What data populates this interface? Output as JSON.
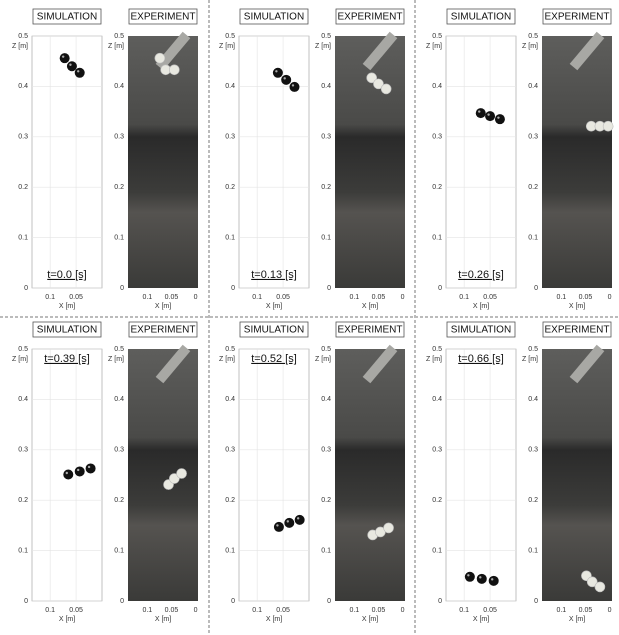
{
  "chart_data": [
    {
      "type": "scatter",
      "title": "SIMULATION",
      "annotation": "t=0.0 [s]",
      "xlabel": "X [m]",
      "ylabel": "Z [m]",
      "x": [
        0.072,
        0.058,
        0.043
      ],
      "values": [
        0.456,
        0.44,
        0.427
      ],
      "color": "#111111",
      "xlim": [
        0.135,
        0
      ],
      "ylim": [
        0,
        0.5
      ],
      "xticks": [
        0.1,
        0.05
      ],
      "yticks": [
        0,
        0.1,
        0.2,
        0.3,
        0.4,
        0.5
      ],
      "grid": true
    },
    {
      "type": "image",
      "title": "EXPERIMENT",
      "xlabel": "X [m]",
      "ylabel": "Z [m]",
      "x": [
        0.074,
        0.062,
        0.044
      ],
      "values": [
        0.456,
        0.433,
        0.433
      ],
      "color": "#e8e8e0",
      "xlim": [
        0.14,
        -0.005
      ],
      "ylim": [
        0,
        0.5
      ],
      "xticks": [
        0.1,
        0.05,
        0
      ],
      "yticks": [
        0,
        0.1,
        0.2,
        0.3,
        0.4,
        0.5
      ]
    },
    {
      "type": "scatter",
      "title": "SIMULATION",
      "annotation": "t=0.13 [s]",
      "xlabel": "X [m]",
      "ylabel": "Z [m]",
      "x": [
        0.06,
        0.044,
        0.028
      ],
      "values": [
        0.427,
        0.413,
        0.399
      ],
      "color": "#111111",
      "xlim": [
        0.135,
        0
      ],
      "ylim": [
        0,
        0.5
      ],
      "xticks": [
        0.1,
        0.05
      ],
      "yticks": [
        0,
        0.1,
        0.2,
        0.3,
        0.4,
        0.5
      ],
      "grid": true
    },
    {
      "type": "image",
      "title": "EXPERIMENT",
      "xlabel": "X [m]",
      "ylabel": "Z [m]",
      "x": [
        0.064,
        0.05,
        0.034
      ],
      "values": [
        0.417,
        0.405,
        0.395
      ],
      "color": "#e8e8e0",
      "xlim": [
        0.14,
        -0.005
      ],
      "ylim": [
        0,
        0.5
      ],
      "xticks": [
        0.1,
        0.05,
        0
      ],
      "yticks": [
        0,
        0.1,
        0.2,
        0.3,
        0.4,
        0.5
      ]
    },
    {
      "type": "scatter",
      "title": "SIMULATION",
      "annotation": "t=0.26 [s]",
      "xlabel": "X [m]",
      "ylabel": "Z [m]",
      "x": [
        0.068,
        0.05,
        0.031
      ],
      "values": [
        0.347,
        0.341,
        0.335
      ],
      "color": "#111111",
      "xlim": [
        0.135,
        0
      ],
      "ylim": [
        0,
        0.5
      ],
      "xticks": [
        0.1,
        0.05
      ],
      "yticks": [
        0,
        0.1,
        0.2,
        0.3,
        0.4,
        0.5
      ],
      "grid": true
    },
    {
      "type": "image",
      "title": "EXPERIMENT",
      "xlabel": "X [m]",
      "ylabel": "Z [m]",
      "x": [
        0.038,
        0.02,
        0.003
      ],
      "values": [
        0.321,
        0.321,
        0.321
      ],
      "color": "#e8e8e0",
      "xlim": [
        0.14,
        -0.005
      ],
      "ylim": [
        0,
        0.5
      ],
      "xticks": [
        0.1,
        0.05,
        0
      ],
      "yticks": [
        0,
        0.1,
        0.2,
        0.3,
        0.4,
        0.5
      ]
    },
    {
      "type": "scatter",
      "title": "SIMULATION",
      "annotation": "t=0.39 [s]",
      "xlabel": "X [m]",
      "ylabel": "Z [m]",
      "x": [
        0.065,
        0.043,
        0.022
      ],
      "values": [
        0.251,
        0.257,
        0.263
      ],
      "color": "#111111",
      "xlim": [
        0.135,
        0
      ],
      "ylim": [
        0,
        0.5
      ],
      "xticks": [
        0.1,
        0.05
      ],
      "yticks": [
        0,
        0.1,
        0.2,
        0.3,
        0.4,
        0.5
      ],
      "grid": true
    },
    {
      "type": "image",
      "title": "EXPERIMENT",
      "xlabel": "X [m]",
      "ylabel": "Z [m]",
      "x": [
        0.056,
        0.044,
        0.029
      ],
      "values": [
        0.231,
        0.243,
        0.253
      ],
      "color": "#e8e8e0",
      "xlim": [
        0.14,
        -0.005
      ],
      "ylim": [
        0,
        0.5
      ],
      "xticks": [
        0.1,
        0.05,
        0
      ],
      "yticks": [
        0,
        0.1,
        0.2,
        0.3,
        0.4,
        0.5
      ]
    },
    {
      "type": "scatter",
      "title": "SIMULATION",
      "annotation": "t=0.52 [s]",
      "xlabel": "X [m]",
      "ylabel": "Z [m]",
      "x": [
        0.058,
        0.038,
        0.018
      ],
      "values": [
        0.147,
        0.155,
        0.161
      ],
      "color": "#111111",
      "xlim": [
        0.135,
        0
      ],
      "ylim": [
        0,
        0.5
      ],
      "xticks": [
        0.1,
        0.05
      ],
      "yticks": [
        0,
        0.1,
        0.2,
        0.3,
        0.4,
        0.5
      ],
      "grid": true
    },
    {
      "type": "image",
      "title": "EXPERIMENT",
      "xlabel": "X [m]",
      "ylabel": "Z [m]",
      "x": [
        0.062,
        0.046,
        0.029
      ],
      "values": [
        0.131,
        0.137,
        0.145
      ],
      "color": "#e8e8e0",
      "xlim": [
        0.14,
        -0.005
      ],
      "ylim": [
        0,
        0.5
      ],
      "xticks": [
        0.1,
        0.05,
        0
      ],
      "yticks": [
        0,
        0.1,
        0.2,
        0.3,
        0.4,
        0.5
      ]
    },
    {
      "type": "scatter",
      "title": "SIMULATION",
      "annotation": "t=0.66 [s]",
      "xlabel": "X [m]",
      "ylabel": "Z [m]",
      "x": [
        0.089,
        0.066,
        0.043
      ],
      "values": [
        0.048,
        0.044,
        0.04
      ],
      "color": "#111111",
      "xlim": [
        0.135,
        0
      ],
      "ylim": [
        0,
        0.5
      ],
      "xticks": [
        0.1,
        0.05
      ],
      "yticks": [
        0,
        0.1,
        0.2,
        0.3,
        0.4,
        0.5
      ],
      "grid": true
    },
    {
      "type": "image",
      "title": "EXPERIMENT",
      "xlabel": "X [m]",
      "ylabel": "Z [m]",
      "x": [
        0.048,
        0.036,
        0.02
      ],
      "values": [
        0.05,
        0.038,
        0.028
      ],
      "color": "#e8e8e0",
      "xlim": [
        0.14,
        -0.005
      ],
      "ylim": [
        0,
        0.5
      ],
      "xticks": [
        0.1,
        0.05,
        0
      ],
      "yticks": [
        0,
        0.1,
        0.2,
        0.3,
        0.4,
        0.5
      ]
    }
  ]
}
